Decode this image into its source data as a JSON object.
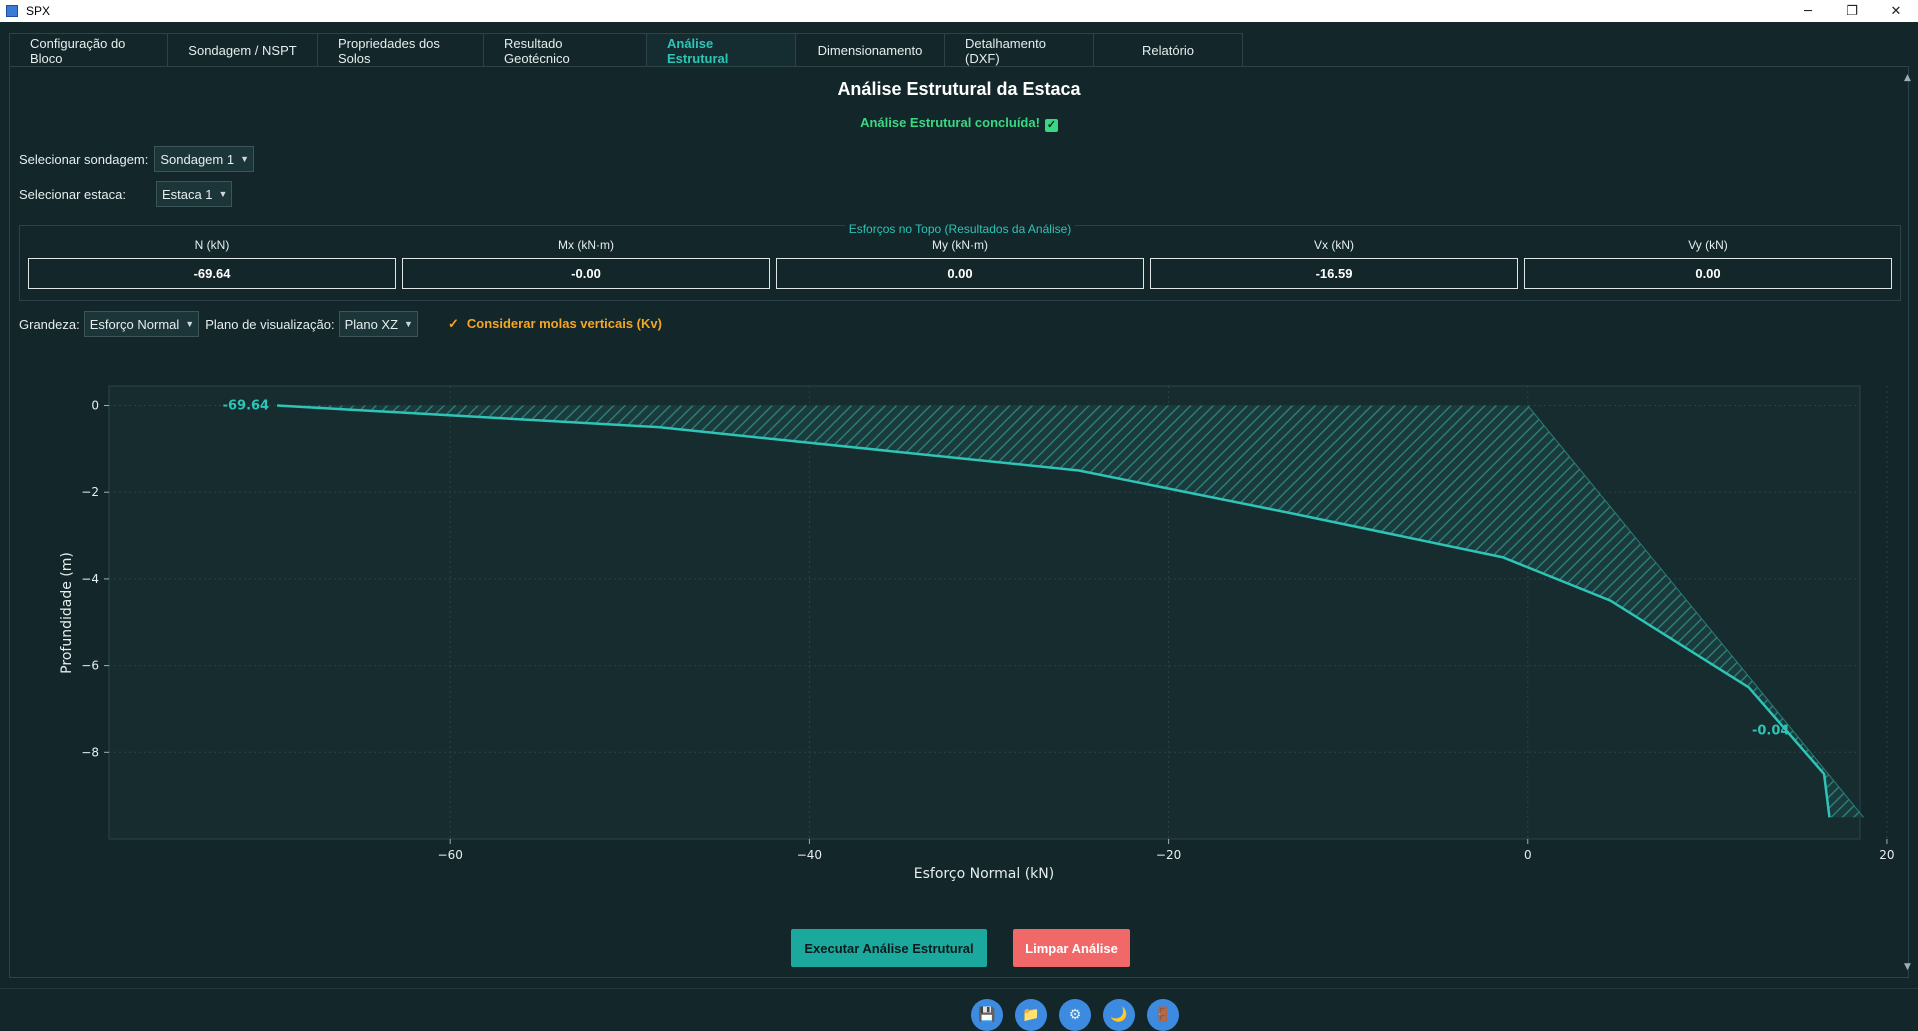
{
  "window": {
    "title": "SPX",
    "minimize": "─",
    "restore": "❐",
    "close": "✕"
  },
  "tabs": [
    {
      "label": "Configuração do Bloco",
      "active": false
    },
    {
      "label": "Sondagem / NSPT",
      "active": false
    },
    {
      "label": "Propriedades dos Solos",
      "active": false
    },
    {
      "label": "Resultado Geotécnico",
      "active": false
    },
    {
      "label": "Análise Estrutural",
      "active": true
    },
    {
      "label": "Dimensionamento",
      "active": false
    },
    {
      "label": "Detalhamento (DXF)",
      "active": false
    },
    {
      "label": "Relatório",
      "active": false
    }
  ],
  "page": {
    "title": "Análise Estrutural da Estaca",
    "status": "Análise Estrutural concluída!",
    "status_icon": "✓"
  },
  "selectors": {
    "sondagem_label": "Selecionar sondagem:",
    "sondagem_value": "Sondagem 1",
    "estaca_label": "Selecionar estaca:",
    "estaca_value": "Estaca 1"
  },
  "results": {
    "group_title": "Esforços no Topo (Resultados da Análise)",
    "items": [
      {
        "label": "N (kN)",
        "value": "-69.64"
      },
      {
        "label": "Mx (kN·m)",
        "value": "-0.00"
      },
      {
        "label": "My (kN·m)",
        "value": "0.00"
      },
      {
        "label": "Vx (kN)",
        "value": "-16.59"
      },
      {
        "label": "Vy (kN)",
        "value": "0.00"
      }
    ]
  },
  "controls": {
    "grandeza_label": "Grandeza:",
    "grandeza_value": "Esforço Normal",
    "plano_label": "Plano de visualização:",
    "plano_value": "Plano XZ",
    "kv_check": "✓",
    "kv_label": "Considerar molas verticais (Kv)"
  },
  "chart_data": {
    "type": "line",
    "xlabel": "Esforço Normal (kN)",
    "ylabel": "Profundidade (m)",
    "xlim": [
      -79,
      18.5
    ],
    "ylim": [
      -10,
      0.45
    ],
    "xticks": [
      -60,
      -40,
      -20,
      0,
      20
    ],
    "yticks": [
      0,
      -2,
      -4,
      -6,
      -8
    ],
    "grid": true,
    "series": [
      {
        "x": [
          -69.64,
          -48.4,
          -25.0,
          -13.0,
          -1.4,
          4.6,
          12.3,
          16.5,
          16.8
        ],
        "y": [
          0,
          -0.5,
          -1.5,
          -2.5,
          -3.5,
          -4.5,
          -6.5,
          -8.5,
          -9.5
        ]
      }
    ],
    "reference_line": {
      "x": [
        0,
        18.7
      ],
      "y": [
        0,
        -9.5
      ]
    },
    "annotations": [
      {
        "text": "-69.64",
        "x": -69.64,
        "y": 0
      },
      {
        "text": "-0.04",
        "x": 16.8,
        "y": -7.5
      }
    ],
    "colors": {
      "line": "#2ec4b6",
      "hatch": "#2a7d78",
      "plot_bg": "#172c2f",
      "grid": "#2a4246"
    }
  },
  "buttons": {
    "run": "Executar Análise Estrutural",
    "clear": "Limpar Análise"
  },
  "toolbar": [
    {
      "name": "save-icon",
      "glyph": "💾"
    },
    {
      "name": "folder-icon",
      "glyph": "📁"
    },
    {
      "name": "settings-icon",
      "glyph": "⚙"
    },
    {
      "name": "theme-icon",
      "glyph": "🌙"
    },
    {
      "name": "exit-icon",
      "glyph": "🚪"
    }
  ],
  "colors": {
    "accent": "#2ec4b6",
    "success": "#3ad882",
    "warning": "#f5a623",
    "danger": "#f06868",
    "background": "#13262a"
  }
}
